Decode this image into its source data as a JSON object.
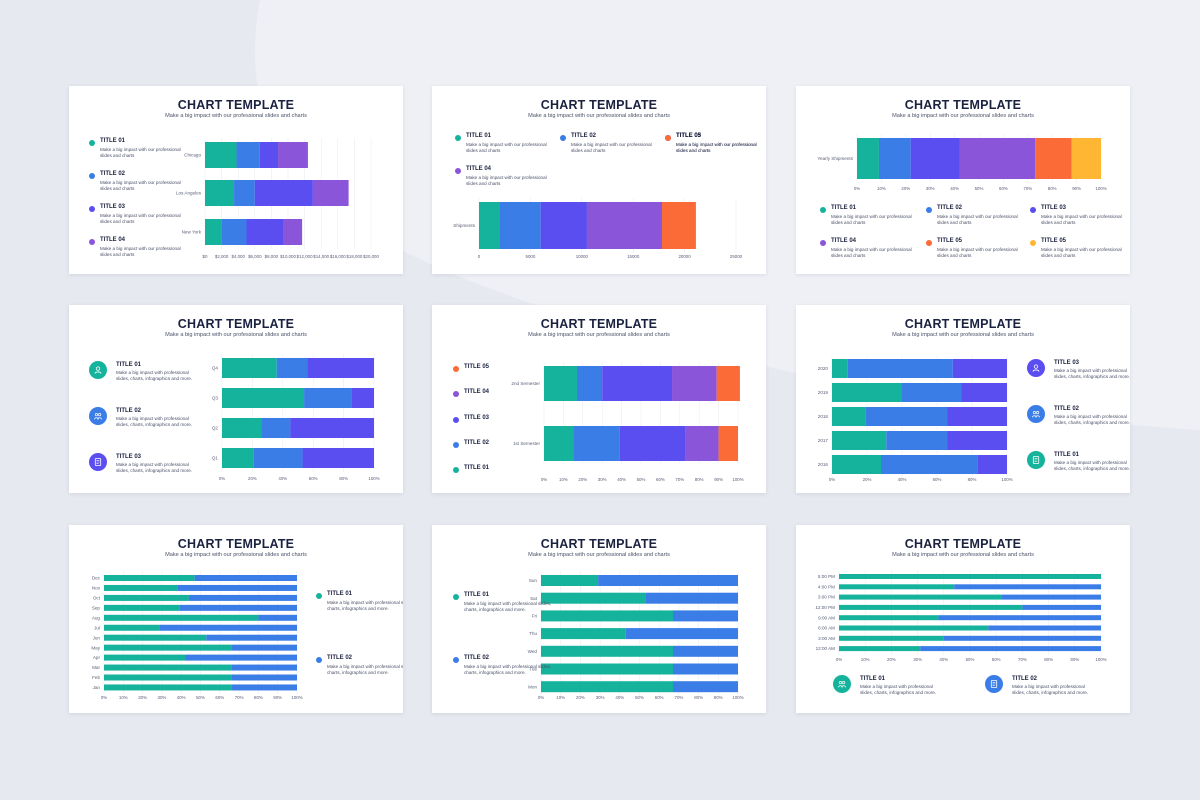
{
  "colors": {
    "teal": "#15b39c",
    "blue": "#3b7de6",
    "indigo": "#5b4ef0",
    "purple": "#8a55d9",
    "orange": "#fb6b37",
    "yellow": "#ffb733"
  },
  "slide_title": "CHART TEMPLATE",
  "subtitle_a": "Make a big impact with our professional slides and charts",
  "subtitle_b": "Make a big impact with our professional slides and charts",
  "legend_desc_short": "Make a big impact with our professional slides and charts",
  "legend_desc_long": "Make a big impact with professional slides, charts, infographics and more.",
  "slides": [
    {
      "id": "s1",
      "legend": [
        {
          "title": "TITLE 01",
          "color": "teal"
        },
        {
          "title": "TITLE 02",
          "color": "blue"
        },
        {
          "title": "TITLE 03",
          "color": "indigo"
        },
        {
          "title": "TITLE 04",
          "color": "purple"
        }
      ]
    },
    {
      "id": "s2",
      "legend": [
        {
          "title": "TITLE 01",
          "color": "teal"
        },
        {
          "title": "TITLE 02",
          "color": "blue"
        },
        {
          "title": "TITLE 03",
          "color": "indigo"
        },
        {
          "title": "TITLE 04",
          "color": "purple"
        },
        {
          "title": "TITLE 05",
          "color": "orange"
        }
      ]
    },
    {
      "id": "s3",
      "legend": [
        {
          "title": "TITLE 01",
          "color": "teal"
        },
        {
          "title": "TITLE 02",
          "color": "blue"
        },
        {
          "title": "TITLE 03",
          "color": "indigo"
        },
        {
          "title": "TITLE 04",
          "color": "purple"
        },
        {
          "title": "TITLE 05",
          "color": "orange"
        },
        {
          "title": "TITLE 05",
          "color": "yellow"
        }
      ]
    },
    {
      "id": "s4",
      "legend": [
        {
          "title": "TITLE 01",
          "color": "teal",
          "icon": "user-icon"
        },
        {
          "title": "TITLE 02",
          "color": "blue",
          "icon": "team-icon"
        },
        {
          "title": "TITLE 03",
          "color": "indigo",
          "icon": "document-icon"
        }
      ]
    },
    {
      "id": "s5",
      "legend": [
        {
          "title": "TITLE 05",
          "color": "orange"
        },
        {
          "title": "TITLE 04",
          "color": "purple"
        },
        {
          "title": "TITLE 03",
          "color": "indigo"
        },
        {
          "title": "TITLE 02",
          "color": "blue"
        },
        {
          "title": "TITLE 01",
          "color": "teal"
        }
      ]
    },
    {
      "id": "s6",
      "legend": [
        {
          "title": "TITLE 03",
          "color": "indigo",
          "icon": "user-icon"
        },
        {
          "title": "TITLE 02",
          "color": "blue",
          "icon": "team-icon"
        },
        {
          "title": "TITLE 01",
          "color": "teal",
          "icon": "document-icon"
        }
      ]
    },
    {
      "id": "s7",
      "legend": [
        {
          "title": "TITLE 01",
          "color": "teal"
        },
        {
          "title": "TITLE 02",
          "color": "blue"
        }
      ]
    },
    {
      "id": "s8",
      "legend": [
        {
          "title": "TITLE 01",
          "color": "teal"
        },
        {
          "title": "TITLE 02",
          "color": "blue"
        }
      ]
    },
    {
      "id": "s9",
      "legend": [
        {
          "title": "TITLE 01",
          "color": "teal",
          "icon": "team-icon"
        },
        {
          "title": "TITLE 02",
          "color": "blue",
          "icon": "document-icon"
        }
      ]
    }
  ],
  "chart_data": [
    {
      "type": "bar",
      "orientation": "horizontal",
      "stacked": true,
      "categories": [
        "Chicago",
        "Los Angeles",
        "New York"
      ],
      "series": [
        {
          "values": [
            3800,
            3500,
            2000
          ]
        },
        {
          "values": [
            2800,
            2500,
            3000
          ]
        },
        {
          "values": [
            2200,
            7000,
            4400
          ]
        },
        {
          "values": [
            3600,
            4300,
            2300
          ]
        }
      ],
      "xticks": [
        "$0",
        "$2,000",
        "$4,000",
        "$6,000",
        "$8,000",
        "$10,000",
        "$12,000",
        "$14,000",
        "$16,000",
        "$18,000",
        "$20,000"
      ],
      "xlim": [
        0,
        20000
      ],
      "grid": true
    },
    {
      "type": "bar",
      "orientation": "horizontal",
      "stacked": true,
      "categories": [
        "Shipments"
      ],
      "series": [
        {
          "values": [
            2000
          ]
        },
        {
          "values": [
            4000
          ]
        },
        {
          "values": [
            4500
          ]
        },
        {
          "values": [
            7300
          ]
        },
        {
          "values": [
            3300
          ]
        }
      ],
      "xticks": [
        "0",
        "5000",
        "10000",
        "15000",
        "20000",
        "25000"
      ],
      "xlim": [
        0,
        25000
      ],
      "grid": true
    },
    {
      "type": "bar",
      "orientation": "horizontal",
      "stacked": true,
      "categories": [
        "Yearly Shipments"
      ],
      "series": [
        {
          "values": [
            9
          ]
        },
        {
          "values": [
            13
          ]
        },
        {
          "values": [
            20
          ]
        },
        {
          "values": [
            31
          ]
        },
        {
          "values": [
            15
          ]
        },
        {
          "values": [
            12
          ]
        }
      ],
      "xticks": [
        "0%",
        "10%",
        "20%",
        "30%",
        "40%",
        "50%",
        "60%",
        "70%",
        "80%",
        "90%",
        "100%"
      ],
      "xlim": [
        0,
        100
      ],
      "grid": true
    },
    {
      "type": "bar",
      "orientation": "horizontal",
      "stacked": true,
      "categories": [
        "Q4",
        "Q3",
        "Q2",
        "Q1"
      ],
      "series": [
        {
          "values": [
            36,
            54,
            26,
            21
          ]
        },
        {
          "values": [
            20,
            31,
            19,
            32
          ]
        },
        {
          "values": [
            44,
            15,
            55,
            47
          ]
        }
      ],
      "xticks": [
        "0%",
        "20%",
        "40%",
        "60%",
        "80%",
        "100%"
      ],
      "xlim": [
        0,
        100
      ],
      "grid": true
    },
    {
      "type": "bar",
      "orientation": "horizontal",
      "stacked": true,
      "categories": [
        "2nd Semester",
        "1st Semester"
      ],
      "series": [
        {
          "values": [
            17,
            15
          ]
        },
        {
          "values": [
            13,
            24
          ]
        },
        {
          "values": [
            36,
            34
          ]
        },
        {
          "values": [
            23,
            17
          ]
        },
        {
          "values": [
            12,
            10
          ]
        }
      ],
      "xticks": [
        "0%",
        "10%",
        "20%",
        "30%",
        "40%",
        "50%",
        "60%",
        "70%",
        "80%",
        "90%",
        "100%"
      ],
      "xlim": [
        0,
        100
      ],
      "grid": true
    },
    {
      "type": "bar",
      "orientation": "horizontal",
      "stacked": true,
      "categories": [
        "2020",
        "2019",
        "2018",
        "2017",
        "2016"
      ],
      "series": [
        {
          "values": [
            9,
            40,
            19,
            31,
            28
          ]
        },
        {
          "values": [
            60,
            34,
            47,
            35,
            55
          ]
        },
        {
          "values": [
            31,
            26,
            34,
            34,
            17
          ]
        }
      ],
      "xticks": [
        "0%",
        "20%",
        "40%",
        "60%",
        "80%",
        "100%"
      ],
      "xlim": [
        0,
        100
      ],
      "grid": true
    },
    {
      "type": "bar",
      "orientation": "horizontal",
      "stacked": true,
      "categories": [
        "Dec",
        "Nov",
        "Oct",
        "Sep",
        "Aug",
        "Jul",
        "Jun",
        "May",
        "Apr",
        "Mar",
        "Feb",
        "Jan"
      ],
      "series": [
        {
          "values": [
            47,
            38,
            44,
            39,
            80,
            29,
            53,
            66,
            42,
            66,
            66,
            66
          ]
        },
        {
          "values": [
            53,
            62,
            56,
            61,
            20,
            71,
            47,
            34,
            58,
            34,
            34,
            34
          ]
        }
      ],
      "xticks": [
        "0%",
        "10%",
        "20%",
        "30%",
        "40%",
        "50%",
        "60%",
        "70%",
        "80%",
        "90%",
        "100%"
      ],
      "xlim": [
        0,
        100
      ],
      "grid": true
    },
    {
      "type": "bar",
      "orientation": "horizontal",
      "stacked": true,
      "categories": [
        "Sun",
        "Sat",
        "Fri",
        "Thu",
        "Wed",
        "Tue",
        "Mon"
      ],
      "series": [
        {
          "values": [
            29,
            53,
            67,
            43,
            67,
            67,
            67
          ]
        },
        {
          "values": [
            71,
            47,
            33,
            57,
            33,
            33,
            33
          ]
        }
      ],
      "xticks": [
        "0%",
        "10%",
        "20%",
        "30%",
        "40%",
        "50%",
        "60%",
        "70%",
        "80%",
        "90%",
        "100%"
      ],
      "xlim": [
        0,
        100
      ],
      "grid": true
    },
    {
      "type": "bar",
      "orientation": "horizontal",
      "stacked": true,
      "categories": [
        "5:00 PM",
        "4:00 PM",
        "3:00 PM",
        "12:00 PM",
        "9:00 AM",
        "6:00 AM",
        "3:00 AM",
        "12:00 AM"
      ],
      "series": [
        {
          "values": [
            100,
            44,
            62,
            70,
            38,
            57,
            40,
            31
          ]
        },
        {
          "values": [
            0,
            56,
            38,
            30,
            62,
            43,
            60,
            69
          ]
        }
      ],
      "xticks": [
        "0%",
        "10%",
        "20%",
        "30%",
        "40%",
        "50%",
        "60%",
        "70%",
        "80%",
        "90%",
        "100%"
      ],
      "xlim": [
        0,
        100
      ],
      "grid": true
    }
  ]
}
